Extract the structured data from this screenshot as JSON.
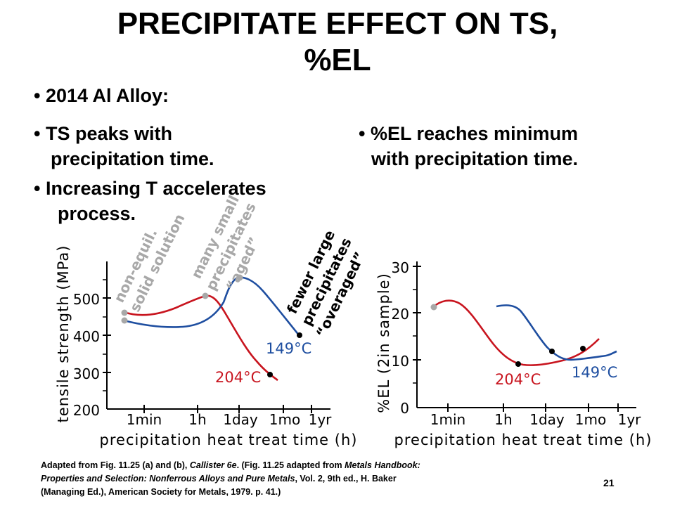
{
  "slide": {
    "title_line1": "PRECIPITATE EFFECT ON TS,",
    "title_line2": "%EL",
    "bullets": {
      "alloy": "• 2014 Al Alloy:",
      "ts_line1": "• TS peaks with",
      "ts_line2": "precipitation time.",
      "temp_line1": "• Increasing T accelerates",
      "temp_line2": "process.",
      "el_line1": "• %EL reaches minimum",
      "el_line2": "with precipitation time."
    },
    "annotations": {
      "noneq_line1": "non-equil.",
      "noneq_line2": "solid solution",
      "many_line1": "many small",
      "many_line2": "precipitates",
      "many_line3": "“aged”",
      "fewer_line1": "fewer large",
      "fewer_line2": "precipitates",
      "fewer_line3": "“overaged”"
    },
    "caption": {
      "l1a": "Adapted from Fig. 11.25 (a) and (b), ",
      "l1b": "Callister 6e",
      "l1c": ". (Fig. 11.25 adapted from ",
      "l1d": "Metals Handbook:",
      "l2a": "Properties and Selection:  Nonferrous Alloys and Pure Metals",
      "l2b": ", Vol. 2, 9th ed., H. Baker",
      "l3": "(Managing Ed.), American Society for Metals, 1979. p. 41.)"
    },
    "page_number": "21"
  },
  "colors": {
    "red": "#c8141e",
    "blue": "#1e4ea0",
    "marker": "#000000",
    "annotation_gray": "#a8a8a8"
  },
  "chart_data": [
    {
      "type": "line",
      "ylabel": "tensile strength (MPa)",
      "xlabel": "precipitation heat treat time (h)",
      "x_ticks": [
        "1min",
        "1h",
        "1day",
        "1mo",
        "1yr"
      ],
      "y_ticks": [
        "200",
        "300",
        "400",
        "500"
      ],
      "ylim": [
        200,
        600
      ],
      "grid": false,
      "series": [
        {
          "name": "204°C",
          "color": "#c8141e",
          "x": [
            1,
            2,
            3,
            4,
            5,
            6,
            7,
            8,
            9,
            10,
            11
          ],
          "y": [
            455,
            450,
            465,
            490,
            505,
            490,
            430,
            350,
            300,
            285,
            275
          ],
          "marker": [
            7.8,
            285
          ]
        },
        {
          "name": "149°C",
          "color": "#1e4ea0",
          "x": [
            1,
            2,
            3,
            4,
            5,
            6,
            7,
            8,
            9,
            10
          ],
          "y": [
            438,
            430,
            425,
            432,
            470,
            550,
            545,
            500,
            430,
            395
          ],
          "marker": [
            10,
            395
          ]
        }
      ]
    },
    {
      "type": "line",
      "ylabel": "%EL (2in sample)",
      "xlabel": "precipitation heat treat time (h)",
      "x_ticks": [
        "1min",
        "1h",
        "1day",
        "1mo",
        "1yr"
      ],
      "y_ticks": [
        "0",
        "10",
        "20",
        "30"
      ],
      "ylim": [
        0,
        30
      ],
      "grid": false,
      "series": [
        {
          "name": "204°C",
          "color": "#c8141e",
          "x": [
            1,
            2,
            3,
            4,
            5,
            6,
            7,
            8,
            9,
            10
          ],
          "y": [
            21,
            22,
            20,
            15,
            11,
            9,
            8.7,
            9,
            10,
            14
          ],
          "marker": [
            6,
            9
          ]
        },
        {
          "name": "149°C",
          "color": "#1e4ea0",
          "x": [
            4.5,
            5,
            6,
            7,
            8,
            9,
            10
          ],
          "y": [
            21,
            21,
            14,
            10.5,
            10,
            10.2,
            11.5
          ],
          "marker": [
            7,
            11.5
          ]
        }
      ]
    }
  ]
}
